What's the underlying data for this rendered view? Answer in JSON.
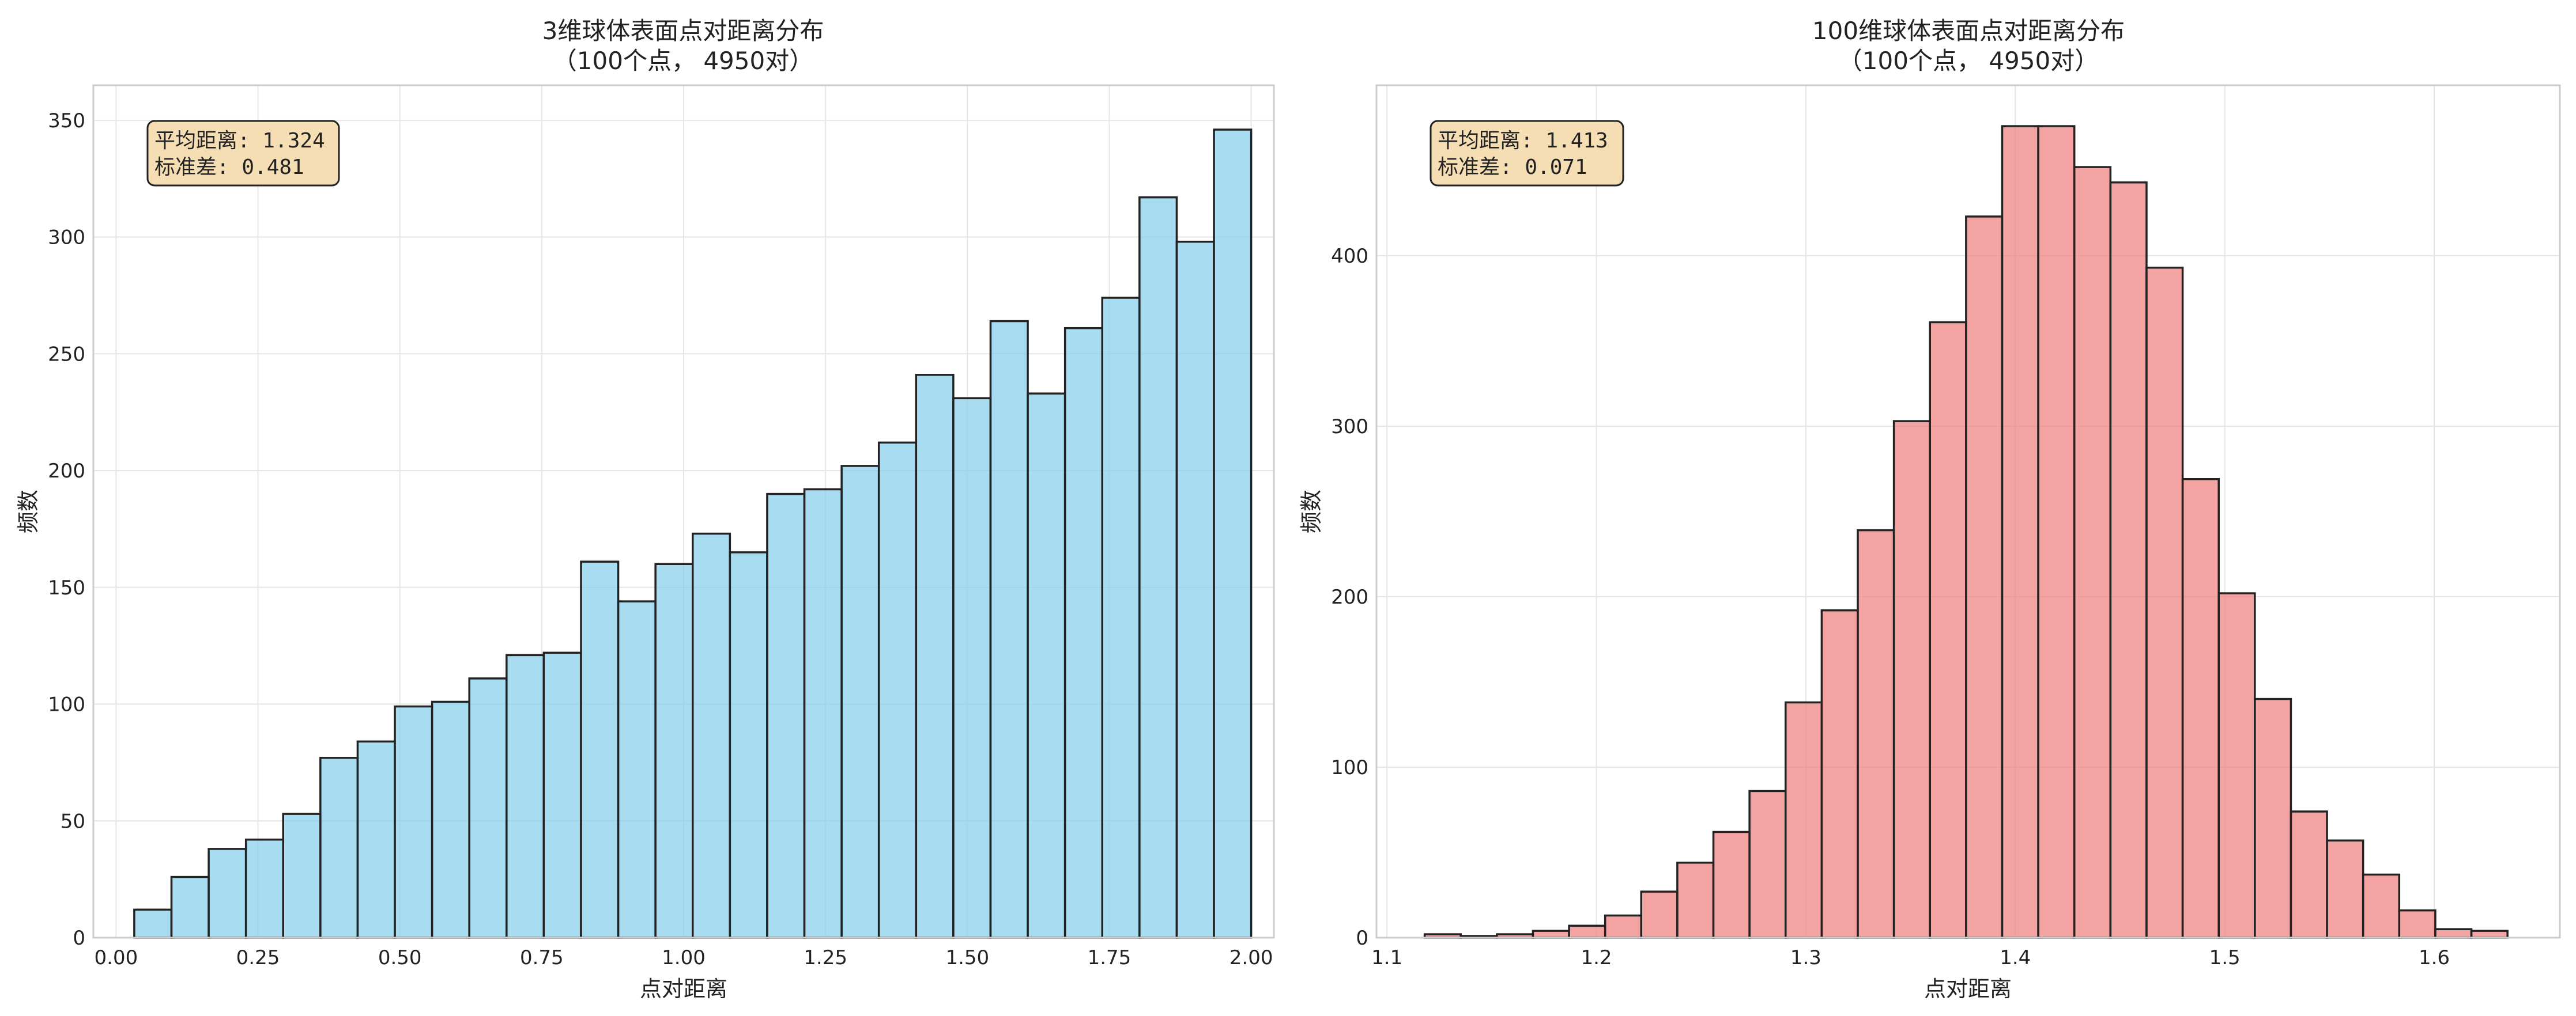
{
  "chart_data": [
    {
      "type": "bar",
      "title": "3维球体表面点对距离分布",
      "subtitle": "（100个点， 4950对）",
      "xlabel": "点对距离",
      "ylabel": "频数",
      "xlim": [
        -0.04,
        2.04
      ],
      "ylim": [
        0,
        365
      ],
      "xticks": [
        "0.00",
        "0.25",
        "0.50",
        "0.75",
        "1.00",
        "1.25",
        "1.50",
        "1.75",
        "2.00"
      ],
      "yticks": [
        "0",
        "50",
        "100",
        "150",
        "200",
        "250",
        "300",
        "350"
      ],
      "grid": true,
      "color": "#87CEEB",
      "edge_color": "#222222",
      "stats_lines": [
        "平均距离: 1.324",
        "标准差: 0.481"
      ],
      "stats_box_color": "#F5DEB3",
      "bin_start": 0.032,
      "bin_end": 2.0,
      "values": [
        12,
        26,
        38,
        42,
        53,
        77,
        84,
        99,
        101,
        111,
        121,
        122,
        161,
        144,
        160,
        173,
        165,
        190,
        192,
        202,
        212,
        241,
        231,
        264,
        233,
        261,
        274,
        317,
        298,
        346
      ]
    },
    {
      "type": "bar",
      "title": "100维球体表面点对距离分布",
      "subtitle": "（100个点， 4950对）",
      "xlabel": "点对距离",
      "ylabel": "频数",
      "xlim": [
        1.095,
        1.66
      ],
      "ylim": [
        0,
        500
      ],
      "xticks": [
        "1.1",
        "1.2",
        "1.3",
        "1.4",
        "1.5",
        "1.6"
      ],
      "yticks": [
        "0",
        "100",
        "200",
        "300",
        "400"
      ],
      "grid": true,
      "color": "#F08080",
      "edge_color": "#222222",
      "stats_lines": [
        "平均距离: 1.413",
        "标准差: 0.071"
      ],
      "stats_box_color": "#F5DEB3",
      "bin_start": 1.118,
      "bin_end": 1.635,
      "values": [
        2,
        1,
        2,
        4,
        7,
        13,
        27,
        44,
        62,
        86,
        138,
        192,
        239,
        303,
        361,
        423,
        476,
        476,
        452,
        443,
        393,
        269,
        202,
        140,
        74,
        57,
        37,
        16,
        5,
        4
      ]
    }
  ]
}
